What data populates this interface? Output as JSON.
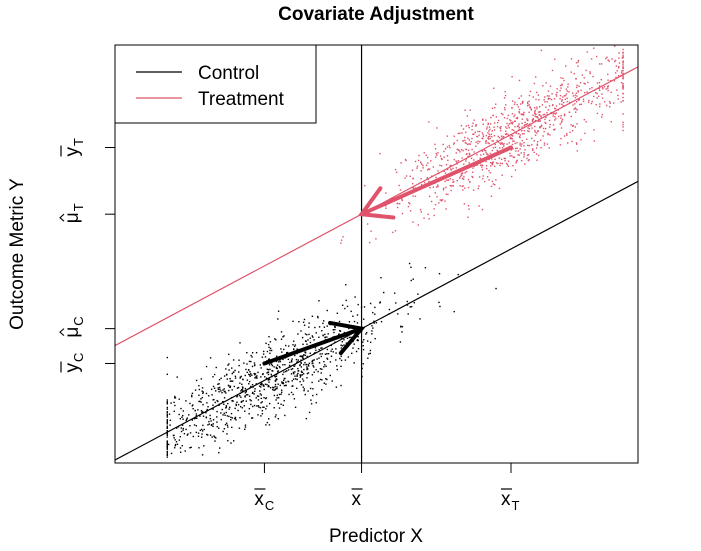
{
  "chart_data": {
    "type": "scatter",
    "title": "Covariate Adjustment",
    "xlabel": "Predictor X",
    "ylabel": "Outcome Metric Y",
    "xlim": [
      -1.65,
      1.85
    ],
    "ylim": [
      -1.05,
      3.15
    ],
    "x_ticks": [
      {
        "value": -0.65,
        "label": "x",
        "sub": "C",
        "bar": true
      },
      {
        "value": 0.0,
        "label": "x",
        "sub": "",
        "bar": true
      },
      {
        "value": 1.0,
        "label": "x",
        "sub": "T",
        "bar": true
      }
    ],
    "y_ticks": [
      {
        "value": -0.05,
        "label": "y",
        "sub": "C",
        "bar": true,
        "hat": false
      },
      {
        "value": 0.3,
        "label": "μ",
        "sub": "C",
        "bar": false,
        "hat": true
      },
      {
        "value": 1.45,
        "label": "μ",
        "sub": "T",
        "bar": false,
        "hat": true
      },
      {
        "value": 2.12,
        "label": "y",
        "sub": "T",
        "bar": true,
        "hat": false
      }
    ],
    "series": [
      {
        "name": "Control",
        "color": "#000000",
        "intercept": 0.3,
        "slope": 0.8,
        "x_range": [
          -1.3,
          0.9
        ],
        "x_mean": -0.65,
        "x_sd": 0.42,
        "y_noise": 0.2,
        "n": 1000,
        "seed": 11
      },
      {
        "name": "Treatment",
        "color": "#DF536B",
        "intercept": 1.45,
        "slope": 0.8,
        "x_range": [
          -0.8,
          1.75
        ],
        "x_mean": 1.0,
        "x_sd": 0.42,
        "y_noise": 0.2,
        "n": 1000,
        "seed": 29
      }
    ],
    "arrows": [
      {
        "series": "Control",
        "from": [
          -0.65,
          -0.05
        ],
        "to": [
          0.0,
          0.3
        ],
        "color": "#000000"
      },
      {
        "series": "Treatment",
        "from": [
          1.0,
          2.12
        ],
        "to": [
          0.0,
          1.45
        ],
        "color": "#DF536B"
      }
    ],
    "vline_x": 0.0,
    "legend": {
      "position": "top-left",
      "entries": [
        "Control",
        "Treatment"
      ]
    }
  }
}
